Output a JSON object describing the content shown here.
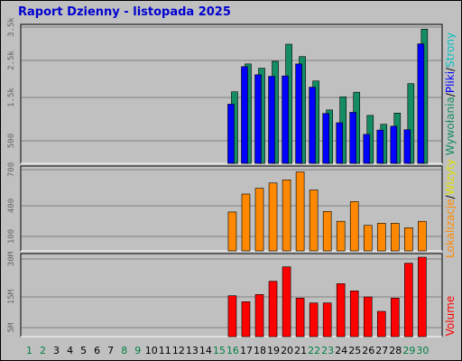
{
  "title": "Raport Dzienny - listopada 2025",
  "colors": {
    "hits": "#148c64",
    "files": "#0000ff",
    "visits": "#ff8800",
    "kbytes": "#ff0000",
    "weekday_label": "#000000",
    "weekend_label": "#008040",
    "title": "#0000d0"
  },
  "chart_data": [
    {
      "type": "bar",
      "title": "Raport Dzienny - listopada 2025",
      "legend": [
        "Wywołania",
        "Pliki",
        "Strony"
      ],
      "ytick_labels": [
        "3.5k",
        "2.5k",
        "1.5k",
        "500"
      ],
      "ylim": [
        0,
        3500
      ],
      "categories": [
        "1",
        "2",
        "3",
        "4",
        "5",
        "6",
        "7",
        "8",
        "9",
        "10",
        "11",
        "12",
        "13",
        "14",
        "15",
        "16",
        "17",
        "18",
        "19",
        "20",
        "21",
        "22",
        "23",
        "24",
        "25",
        "26",
        "27",
        "28",
        "29",
        "30"
      ],
      "series": [
        {
          "name": "Wywołania",
          "values": [
            0,
            0,
            0,
            0,
            0,
            0,
            0,
            0,
            0,
            0,
            0,
            0,
            0,
            0,
            0,
            1850,
            2570,
            2460,
            2640,
            3080,
            2760,
            2130,
            1380,
            1720,
            1840,
            1240,
            1010,
            1300,
            2060,
            3470
          ]
        },
        {
          "name": "Pliki",
          "values": [
            0,
            0,
            0,
            0,
            0,
            0,
            0,
            0,
            0,
            0,
            0,
            0,
            0,
            0,
            0,
            1530,
            2500,
            2290,
            2250,
            2260,
            2570,
            1970,
            1290,
            1050,
            1320,
            750,
            860,
            960,
            870,
            3090
          ]
        }
      ]
    },
    {
      "type": "bar",
      "legend": [
        "Wizyty",
        "Lokalizacje"
      ],
      "ytick_labels": [
        "700",
        "400",
        "100"
      ],
      "ylim": [
        0,
        700
      ],
      "categories": [
        "1",
        "2",
        "3",
        "4",
        "5",
        "6",
        "7",
        "8",
        "9",
        "10",
        "11",
        "12",
        "13",
        "14",
        "15",
        "16",
        "17",
        "18",
        "19",
        "20",
        "21",
        "22",
        "23",
        "24",
        "25",
        "26",
        "27",
        "28",
        "29",
        "30"
      ],
      "series": [
        {
          "name": "Wizyty",
          "values": [
            0,
            0,
            0,
            0,
            0,
            0,
            0,
            0,
            0,
            0,
            0,
            0,
            0,
            0,
            0,
            335,
            490,
            540,
            585,
            612,
            680,
            525,
            340,
            255,
            425,
            220,
            238,
            238,
            200,
            255
          ]
        }
      ]
    },
    {
      "type": "bar",
      "legend": [
        "Volume"
      ],
      "ytick_labels": [
        "30M",
        "15M",
        "5M"
      ],
      "ylim": [
        0,
        33
      ],
      "categories": [
        "1",
        "2",
        "3",
        "4",
        "5",
        "6",
        "7",
        "8",
        "9",
        "10",
        "11",
        "12",
        "13",
        "14",
        "15",
        "16",
        "17",
        "18",
        "19",
        "20",
        "21",
        "22",
        "23",
        "24",
        "25",
        "26",
        "27",
        "28",
        "29",
        "30"
      ],
      "series": [
        {
          "name": "Volume",
          "values": [
            0,
            0,
            0,
            0,
            0,
            0,
            0,
            0,
            0,
            0,
            0,
            0,
            0,
            0,
            0,
            17,
            14.5,
            17.5,
            23,
            29,
            16,
            14,
            14,
            22,
            19,
            16.5,
            10.5,
            16,
            30.5,
            33
          ]
        }
      ]
    }
  ],
  "x_days": [
    {
      "label": "1",
      "weekend": true
    },
    {
      "label": "2",
      "weekend": true
    },
    {
      "label": "3",
      "weekend": false
    },
    {
      "label": "4",
      "weekend": false
    },
    {
      "label": "5",
      "weekend": false
    },
    {
      "label": "6",
      "weekend": false
    },
    {
      "label": "7",
      "weekend": false
    },
    {
      "label": "8",
      "weekend": true
    },
    {
      "label": "9",
      "weekend": true
    },
    {
      "label": "10",
      "weekend": false
    },
    {
      "label": "11",
      "weekend": false
    },
    {
      "label": "12",
      "weekend": false
    },
    {
      "label": "13",
      "weekend": false
    },
    {
      "label": "14",
      "weekend": false
    },
    {
      "label": "15",
      "weekend": true
    },
    {
      "label": "16",
      "weekend": true
    },
    {
      "label": "17",
      "weekend": false
    },
    {
      "label": "18",
      "weekend": false
    },
    {
      "label": "19",
      "weekend": false
    },
    {
      "label": "20",
      "weekend": false
    },
    {
      "label": "21",
      "weekend": false
    },
    {
      "label": "22",
      "weekend": true
    },
    {
      "label": "23",
      "weekend": true
    },
    {
      "label": "24",
      "weekend": false
    },
    {
      "label": "25",
      "weekend": false
    },
    {
      "label": "26",
      "weekend": false
    },
    {
      "label": "27",
      "weekend": false
    },
    {
      "label": "28",
      "weekend": false
    },
    {
      "label": "29",
      "weekend": true
    },
    {
      "label": "30",
      "weekend": true
    }
  ],
  "legend_right": {
    "top": [
      {
        "text": "Wywołania",
        "color": "#148c64"
      },
      {
        "text": "/",
        "color": "#000000"
      },
      {
        "text": "Pliki",
        "color": "#0000ff"
      },
      {
        "text": "/",
        "color": "#000000"
      },
      {
        "text": "Strony",
        "color": "#00c0c0"
      }
    ],
    "middle": [
      {
        "text": "Lokalizacje",
        "color": "#ff8800"
      },
      {
        "text": "/",
        "color": "#000000"
      },
      {
        "text": "Wizyty",
        "color": "#e0e000"
      }
    ],
    "bottom": [
      {
        "text": "Volume",
        "color": "#ff0000"
      }
    ]
  }
}
